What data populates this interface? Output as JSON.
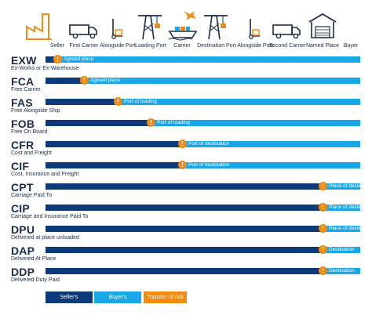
{
  "stages": [
    {
      "label": "Seller",
      "icon": "factory-icon"
    },
    {
      "label": "First Carrier",
      "icon": "truck-icon"
    },
    {
      "label": "Alongside Port",
      "icon": "hand-truck-icon"
    },
    {
      "label": "Loading Port",
      "icon": "crane-icon"
    },
    {
      "label": "Carrier",
      "icon": "ship-and-plane-icon"
    },
    {
      "label": "Destination Port",
      "icon": "crane-icon"
    },
    {
      "label": "Alongside Port",
      "icon": "hand-truck-icon"
    },
    {
      "label": "Second Carrier",
      "icon": "truck-icon"
    },
    {
      "label": "Named Place",
      "icon": "warehouse-icon"
    },
    {
      "label": "Buyer",
      "icon": ""
    }
  ],
  "terms": [
    {
      "code": "EXW",
      "name": "Ex-Works  or Ex-Warehouse",
      "risk_label": "Agreed place",
      "risk_stage": "Seller"
    },
    {
      "code": "FCA",
      "name": "Free Carrier",
      "risk_label": "Agreed place",
      "risk_stage": "First Carrier"
    },
    {
      "code": "FAS",
      "name": "Free Alongside Ship",
      "risk_label": "Port of loading",
      "risk_stage": "Alongside Port"
    },
    {
      "code": "FOB",
      "name": "Free On Board",
      "risk_label": "Port of loading",
      "risk_stage": "Loading Port"
    },
    {
      "code": "CFR",
      "name": "Cost and Freight",
      "risk_label": "Port of destination",
      "risk_stage": "Carrier"
    },
    {
      "code": "CIF",
      "name": "Cost, Insurance and Freight",
      "risk_label": "Port of destination",
      "risk_stage": "Carrier"
    },
    {
      "code": "CPT",
      "name": "Carriage Paid To",
      "risk_label": "Place of destination",
      "risk_stage": "Named Place"
    },
    {
      "code": "CIP",
      "name": "Carriage and Insurance Paid To",
      "risk_label": "Place of destination",
      "risk_stage": "Named Place"
    },
    {
      "code": "DPU",
      "name": "Delivered at place unloaded",
      "risk_label": "Place of destination",
      "risk_stage": "Named Place"
    },
    {
      "code": "DAP",
      "name": "Delivered At Place",
      "risk_label": "Destination",
      "risk_stage": "Buyer"
    },
    {
      "code": "DDP",
      "name": "Delivered Duty Paid",
      "risk_label": "Destination",
      "risk_stage": "Buyer"
    }
  ],
  "risk_marker": "!",
  "legend": [
    {
      "label": "Seller's obligation",
      "color": "#0d3a78"
    },
    {
      "label": "Buyer's obligation",
      "color": "#1aa7e8"
    },
    {
      "label": "Transfer of risk",
      "color": "#f38b12"
    }
  ],
  "colors": {
    "seller": "#0d3a78",
    "buyer": "#1aa7e8",
    "risk": "#f38b12",
    "text": "#1a2b4c"
  }
}
